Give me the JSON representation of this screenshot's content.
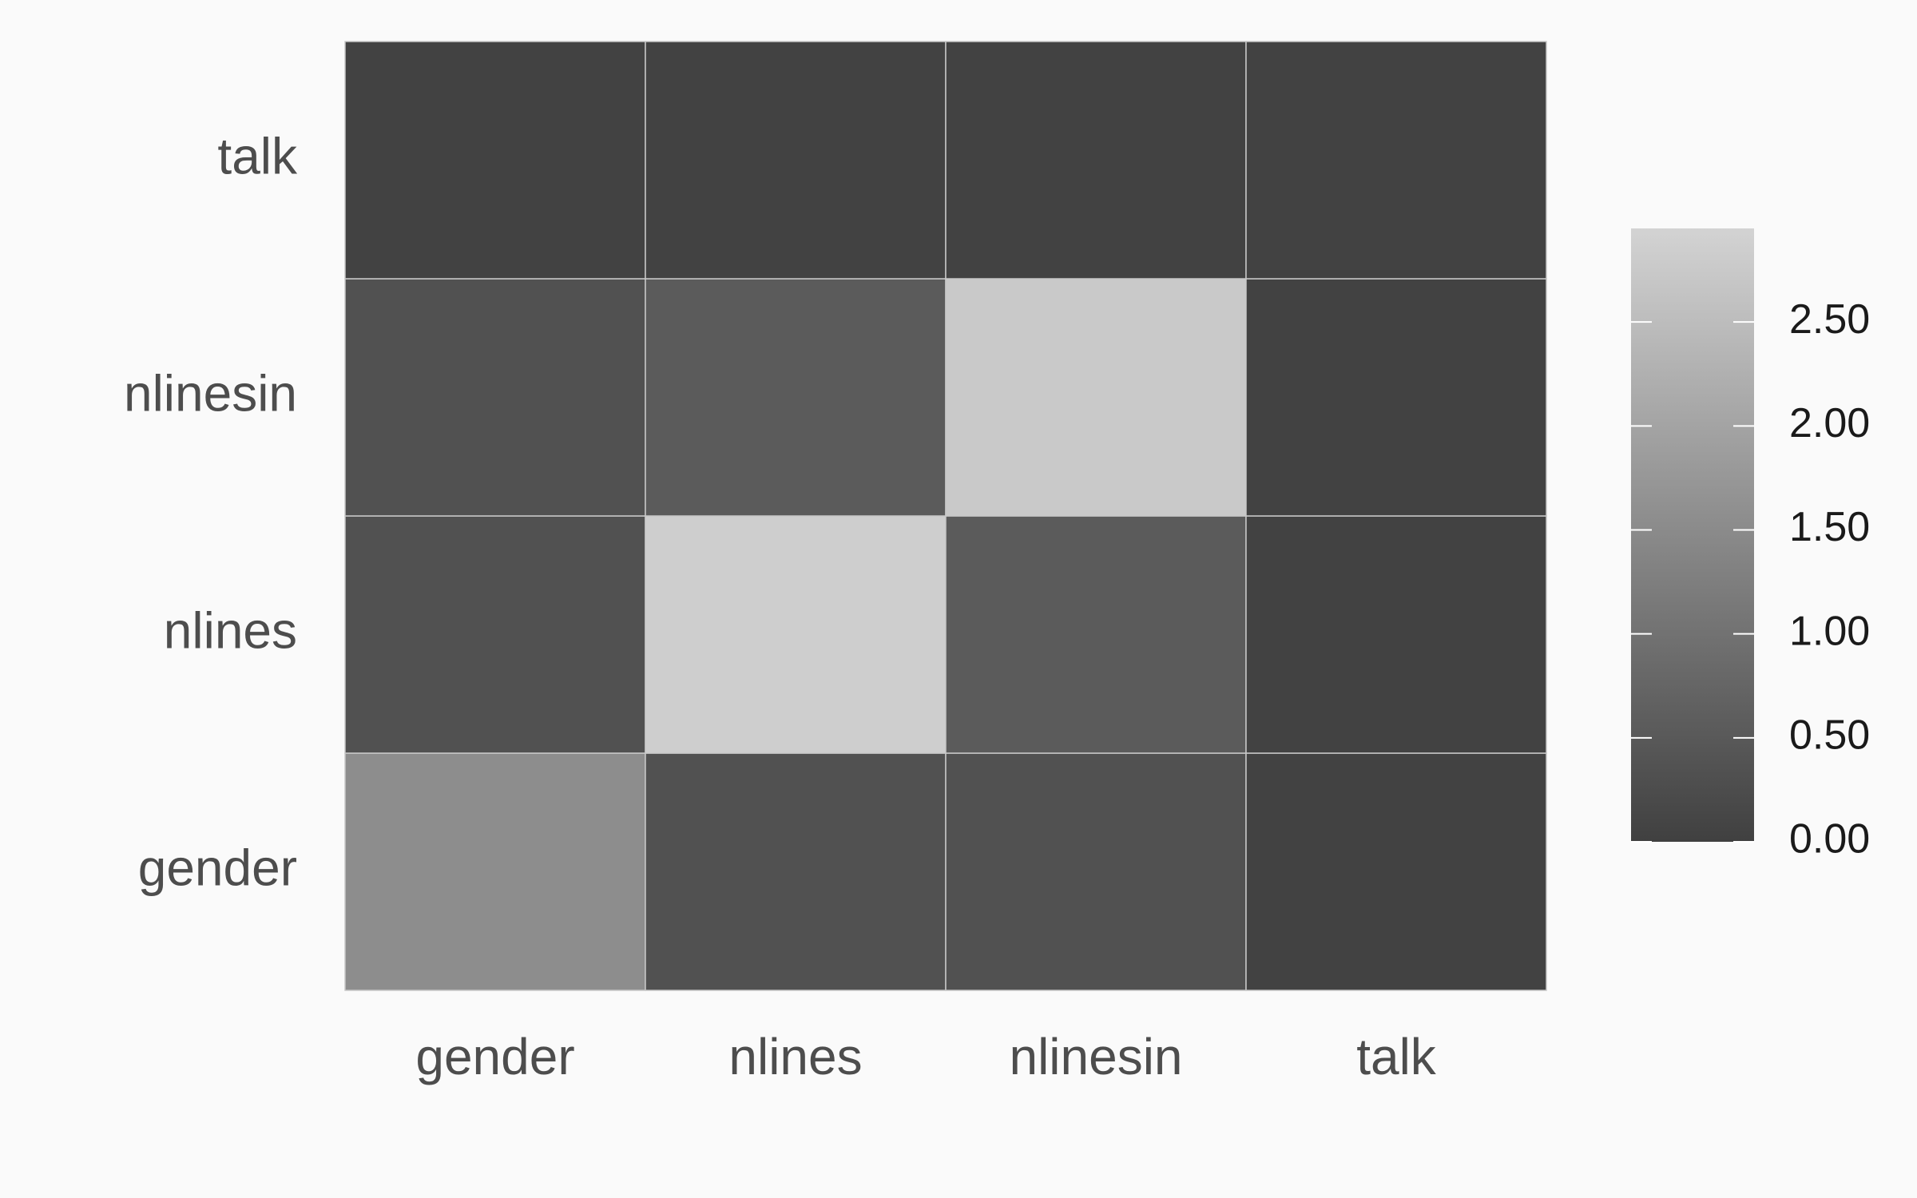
{
  "chart_data": {
    "type": "heatmap",
    "title": "",
    "xlabel": "",
    "ylabel": "",
    "x_categories": [
      "gender",
      "nlines",
      "nlinesin",
      "talk"
    ],
    "y_categories": [
      "gender",
      "nlines",
      "nlinesin",
      "talk"
    ],
    "values": [
      [
        1.55,
        0.35,
        0.35,
        0.05
      ],
      [
        0.35,
        2.85,
        0.55,
        0.05
      ],
      [
        0.35,
        0.55,
        2.75,
        0.05
      ],
      [
        0.05,
        0.05,
        0.05,
        0.05
      ]
    ],
    "colorbar": {
      "range": [
        0.0,
        2.95
      ],
      "ticks": [
        0.0,
        0.5,
        1.0,
        1.5,
        2.0,
        2.5
      ],
      "tick_labels": [
        "0.00",
        "0.50",
        "1.00",
        "1.50",
        "2.00",
        "2.50"
      ],
      "low_color": "#404040",
      "high_color": "#d3d3d3",
      "placement": "right"
    },
    "grid": false,
    "cell_border_color": "#c8c8c8"
  }
}
